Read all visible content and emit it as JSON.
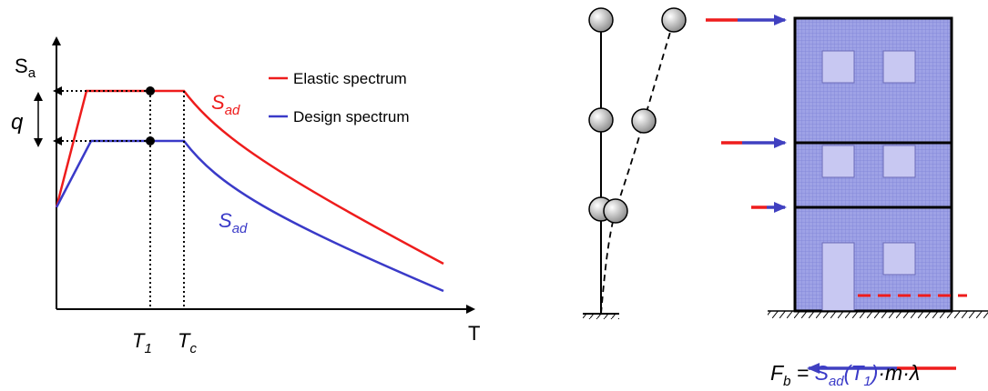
{
  "axis_labels": {
    "y": {
      "main": "S",
      "sub": "a"
    },
    "x": "T"
  },
  "q_label": "q",
  "legend": [
    {
      "label": "Elastic spectrum"
    },
    {
      "label": "Design spectrum"
    }
  ],
  "curve_labels": [
    {
      "main": "S",
      "sub": "ad"
    },
    {
      "main": "S",
      "sub": "ad"
    }
  ],
  "period_labels": [
    {
      "main": "T",
      "sub": "1"
    },
    {
      "main": "T",
      "sub": "c"
    }
  ],
  "formula": [
    "F",
    "b",
    " = ",
    "S",
    "ad",
    "(T",
    "1",
    ")",
    "·m·λ"
  ]
}
